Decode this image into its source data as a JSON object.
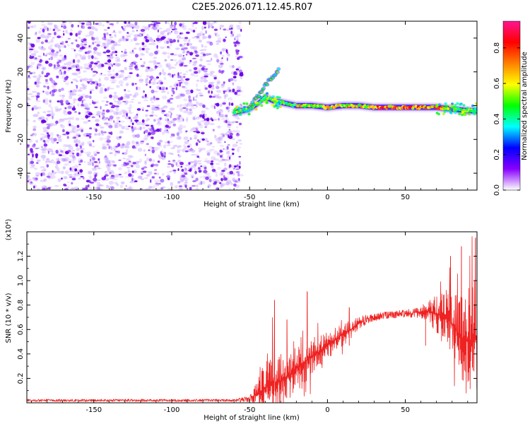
{
  "title": "C2E5.2026.071.12.45.R07",
  "colors": {
    "snr_line": "#ee2222",
    "frame": "#000000",
    "scatter_purple": "#6a00e8"
  },
  "chart_data": [
    {
      "type": "heatmap",
      "name": "spectrogram",
      "xlabel": "Height of straight line (km)",
      "ylabel": "Frequency (Hz)",
      "xlim": [
        -193,
        96
      ],
      "ylim": [
        -50,
        50
      ],
      "xticks": [
        -150,
        -100,
        -50,
        0,
        50
      ],
      "xtick_labels": [
        "-150",
        "-100",
        "-50",
        "0",
        "50"
      ],
      "yticks": [
        -40,
        -20,
        0,
        20,
        40
      ],
      "ytick_labels": [
        "-40",
        "-20",
        "0",
        "20",
        "40"
      ],
      "noise_region_km": [
        -193,
        -55
      ],
      "ridge": {
        "x": [
          -60,
          -55,
          -50,
          -45,
          -40,
          -35,
          -30,
          -25,
          -20,
          -10,
          0,
          10,
          20,
          30,
          40,
          50,
          60,
          70,
          80,
          90,
          96
        ],
        "frequency_hz": [
          -4,
          -3,
          -2,
          1,
          5,
          3,
          2,
          1,
          0,
          0,
          -1,
          0,
          0,
          -1,
          -1,
          -1,
          -1,
          -1,
          -2,
          -3,
          -3
        ]
      },
      "branch": {
        "x": [
          -50,
          -45,
          -40,
          -37,
          -34,
          -31
        ],
        "frequency_hz": [
          -1,
          5,
          12,
          15,
          18,
          22
        ]
      },
      "colorbar": {
        "label": "Normalized spectral amplitude",
        "range": [
          0,
          0.95
        ],
        "ticks": [
          0.0,
          0.2,
          0.4,
          0.6,
          0.8
        ],
        "tick_labels": [
          "0.0",
          "0.2",
          "0.4",
          "0.6",
          "0.8"
        ],
        "stops": [
          "#ffffff",
          "#8800ff",
          "#0000ff",
          "#00ffff",
          "#00ff00",
          "#ffff00",
          "#ff8000",
          "#ff0000",
          "#ff1493"
        ]
      }
    },
    {
      "type": "line",
      "name": "snr",
      "xlabel": "Height of straight line (km)",
      "ylabel": "SNR (10 * v/v)",
      "scale_label": "(x10⁴)",
      "xlim": [
        -193,
        96
      ],
      "ylim": [
        0,
        1.4
      ],
      "xticks": [
        -150,
        -100,
        -50,
        0,
        50
      ],
      "xtick_labels": [
        "-150",
        "-100",
        "-50",
        "0",
        "50"
      ],
      "yticks": [
        0.2,
        0.4,
        0.6,
        0.8,
        1.0,
        1.2
      ],
      "ytick_labels": [
        "0.2",
        "0.4",
        "0.6",
        "0.8",
        "1.0",
        "1.2"
      ],
      "envelope": {
        "x": [
          -193,
          -60,
          -50,
          -45,
          -40,
          -35,
          -30,
          -25,
          -20,
          -15,
          -10,
          -5,
          0,
          5,
          10,
          15,
          20,
          25,
          30,
          40,
          50,
          55,
          60,
          65,
          70,
          75,
          80,
          85,
          90,
          96
        ],
        "baseline": [
          0.02,
          0.02,
          0.03,
          0.08,
          0.12,
          0.15,
          0.18,
          0.22,
          0.28,
          0.33,
          0.38,
          0.42,
          0.47,
          0.52,
          0.56,
          0.6,
          0.65,
          0.68,
          0.7,
          0.72,
          0.73,
          0.74,
          0.74,
          0.75,
          0.73,
          0.7,
          0.65,
          0.55,
          0.5,
          0.55
        ],
        "amplitude": [
          0.01,
          0.01,
          0.03,
          0.15,
          0.3,
          0.35,
          0.3,
          0.25,
          0.25,
          0.25,
          0.2,
          0.15,
          0.15,
          0.12,
          0.12,
          0.1,
          0.06,
          0.04,
          0.03,
          0.03,
          0.03,
          0.04,
          0.06,
          0.12,
          0.2,
          0.3,
          0.35,
          0.45,
          0.55,
          0.6
        ]
      },
      "notable_peaks": [
        {
          "x": -34,
          "y": 0.84
        },
        {
          "x": -26,
          "y": 0.68
        },
        {
          "x": -13,
          "y": 0.91
        },
        {
          "x": 14,
          "y": 0.78
        },
        {
          "x": 63,
          "y": 0.78
        },
        {
          "x": 79,
          "y": 1.2
        },
        {
          "x": 86,
          "y": 1.28
        },
        {
          "x": 95,
          "y": 1.35
        }
      ]
    }
  ]
}
